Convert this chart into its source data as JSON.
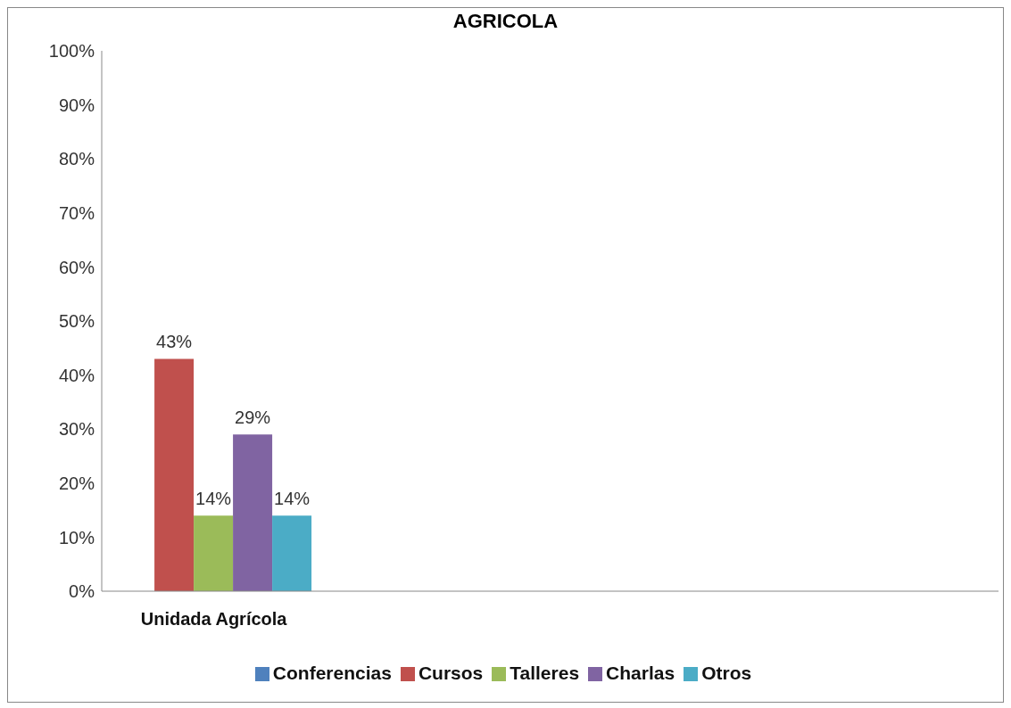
{
  "chart_data": {
    "type": "bar",
    "title": "AGRICOLA",
    "categories": [
      "Unidada Agrícola",
      null,
      null,
      null
    ],
    "series": [
      {
        "name": "Conferencias",
        "color": "#4f81bd",
        "values": [
          0,
          null,
          null,
          null
        ],
        "value_labels": [
          null,
          null,
          null,
          null
        ]
      },
      {
        "name": "Cursos",
        "color": "#c0504d",
        "values": [
          43,
          null,
          null,
          null
        ],
        "value_labels": [
          "43%",
          null,
          null,
          null
        ]
      },
      {
        "name": "Talleres",
        "color": "#9bbb59",
        "values": [
          14,
          null,
          null,
          null
        ],
        "value_labels": [
          "14%",
          null,
          null,
          null
        ]
      },
      {
        "name": "Charlas",
        "color": "#8064a2",
        "values": [
          29,
          null,
          null,
          null
        ],
        "value_labels": [
          "29%",
          null,
          null,
          null
        ]
      },
      {
        "name": "Otros",
        "color": "#4bacc6",
        "values": [
          14,
          null,
          null,
          null
        ],
        "value_labels": [
          "14%",
          null,
          null,
          null
        ]
      }
    ],
    "ylim": [
      0,
      100
    ],
    "yticks": [
      {
        "value": 0,
        "label": "0%"
      },
      {
        "value": 10,
        "label": "10%"
      },
      {
        "value": 20,
        "label": "20%"
      },
      {
        "value": 30,
        "label": "30%"
      },
      {
        "value": 40,
        "label": "40%"
      },
      {
        "value": 50,
        "label": "50%"
      },
      {
        "value": 60,
        "label": "60%"
      },
      {
        "value": 70,
        "label": "70%"
      },
      {
        "value": 80,
        "label": "80%"
      },
      {
        "value": 90,
        "label": "90%"
      },
      {
        "value": 100,
        "label": "100%"
      }
    ],
    "grid": false,
    "legend": "bottom"
  }
}
